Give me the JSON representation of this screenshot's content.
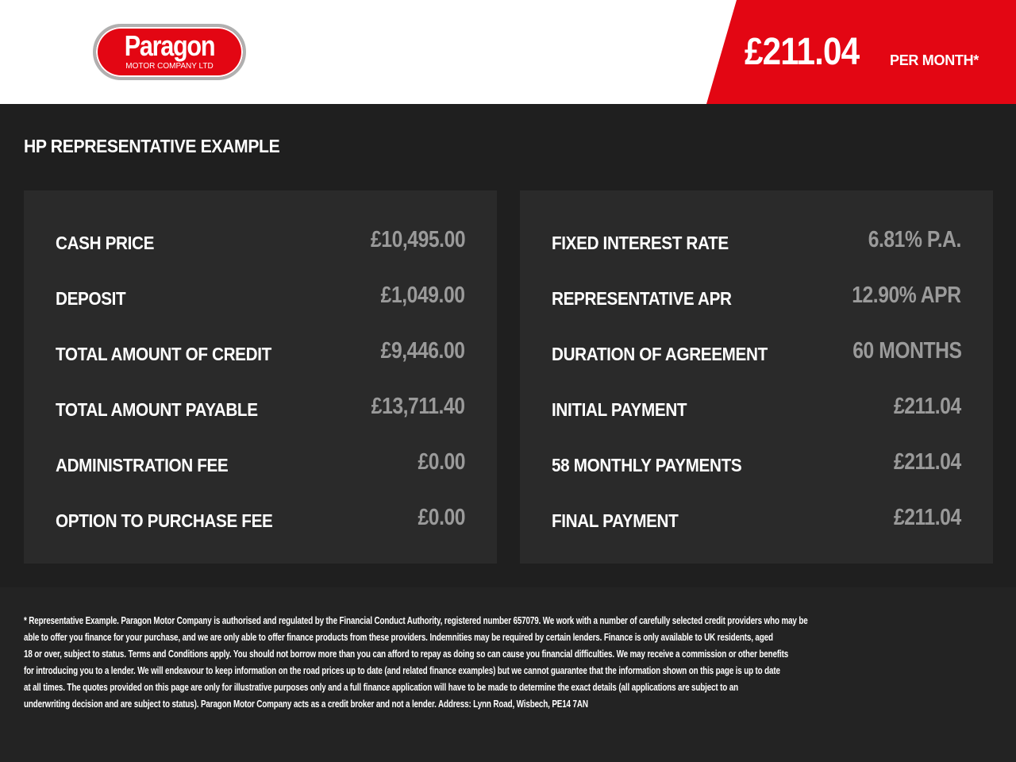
{
  "header": {
    "logo_text": "Paragon",
    "logo_subtext": "MOTOR COMPANY LTD",
    "price": "£211.04",
    "price_suffix": "PER MONTH*",
    "brand_color": "#e30613"
  },
  "title": "HP REPRESENTATIVE EXAMPLE",
  "left_panel": [
    {
      "label": "CASH PRICE",
      "value": "£10,495.00"
    },
    {
      "label": "DEPOSIT",
      "value": "£1,049.00"
    },
    {
      "label": "TOTAL AMOUNT OF CREDIT",
      "value": "£9,446.00"
    },
    {
      "label": "TOTAL AMOUNT PAYABLE",
      "value": "£13,711.40"
    },
    {
      "label": "ADMINISTRATION FEE",
      "value": "£0.00"
    },
    {
      "label": "OPTION TO PURCHASE FEE",
      "value": "£0.00"
    }
  ],
  "right_panel": [
    {
      "label": "FIXED INTEREST RATE",
      "value": "6.81% P.A."
    },
    {
      "label": "REPRESENTATIVE APR",
      "value": "12.90% APR"
    },
    {
      "label": "DURATION OF AGREEMENT",
      "value": "60 MONTHS"
    },
    {
      "label": "INITIAL PAYMENT",
      "value": "£211.04"
    },
    {
      "label": "58 MONTHLY PAYMENTS",
      "value": "£211.04"
    },
    {
      "label": "FINAL PAYMENT",
      "value": "£211.04"
    }
  ],
  "disclaimer": [
    "* Representative Example. Paragon Motor Company is authorised and regulated by the Financial Conduct Authority, registered number 657079. We work with a number of carefully selected credit providers who may be",
    "able to offer you finance for your purchase, and we are only able to offer finance products from these providers. Indemnities may be required by certain lenders. Finance is only available to UK residents, aged",
    "18 or over, subject to status. Terms and Conditions apply. You should not borrow more than you can afford to repay as doing so can cause you financial difficulties. We may receive a commission or other benefits",
    "for introducing you to a lender. We will endeavour to keep information on the road prices up to date (and related finance examples) but we cannot guarantee that the information shown on this page is up to date",
    "at all times. The quotes provided on this page are only for illustrative purposes only and a full finance application will have to be made to determine the exact details (all applications are subject to an",
    "underwriting decision and are subject to status). Paragon Motor Company acts as a credit broker and not a lender. Address: Lynn Road, Wisbech, PE14 7AN"
  ]
}
